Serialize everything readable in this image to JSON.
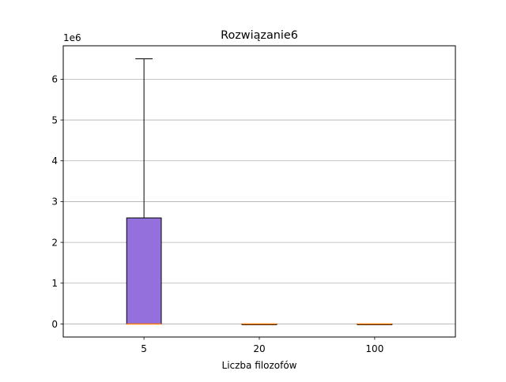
{
  "chart_data": {
    "type": "box",
    "title": "Rozwiązanie6",
    "xlabel": "Liczba filozofów",
    "ylabel": "",
    "y_offset_label": "1e6",
    "categories": [
      "5",
      "20",
      "100"
    ],
    "boxes": [
      {
        "category": "5",
        "whisker_low": 0,
        "q1": 0,
        "median": 0,
        "q3": 2600000,
        "whisker_high": 6500000
      },
      {
        "category": "20",
        "whisker_low": 0,
        "q1": 0,
        "median": 0,
        "q3": 0,
        "whisker_high": 0
      },
      {
        "category": "100",
        "whisker_low": 0,
        "q1": 0,
        "median": 0,
        "q3": 0,
        "whisker_high": 0
      }
    ],
    "ylim": [
      -320000,
      6820000
    ],
    "yticks": [
      0,
      1000000,
      2000000,
      3000000,
      4000000,
      5000000,
      6000000
    ],
    "ytick_labels": [
      "0",
      "1",
      "2",
      "3",
      "4",
      "5",
      "6"
    ],
    "grid": {
      "y": true,
      "x": false
    },
    "colors": {
      "box_fill": "#9370DB",
      "median": "#FF7F0E",
      "grid": "#b0b0b0",
      "axis": "#000000"
    }
  }
}
